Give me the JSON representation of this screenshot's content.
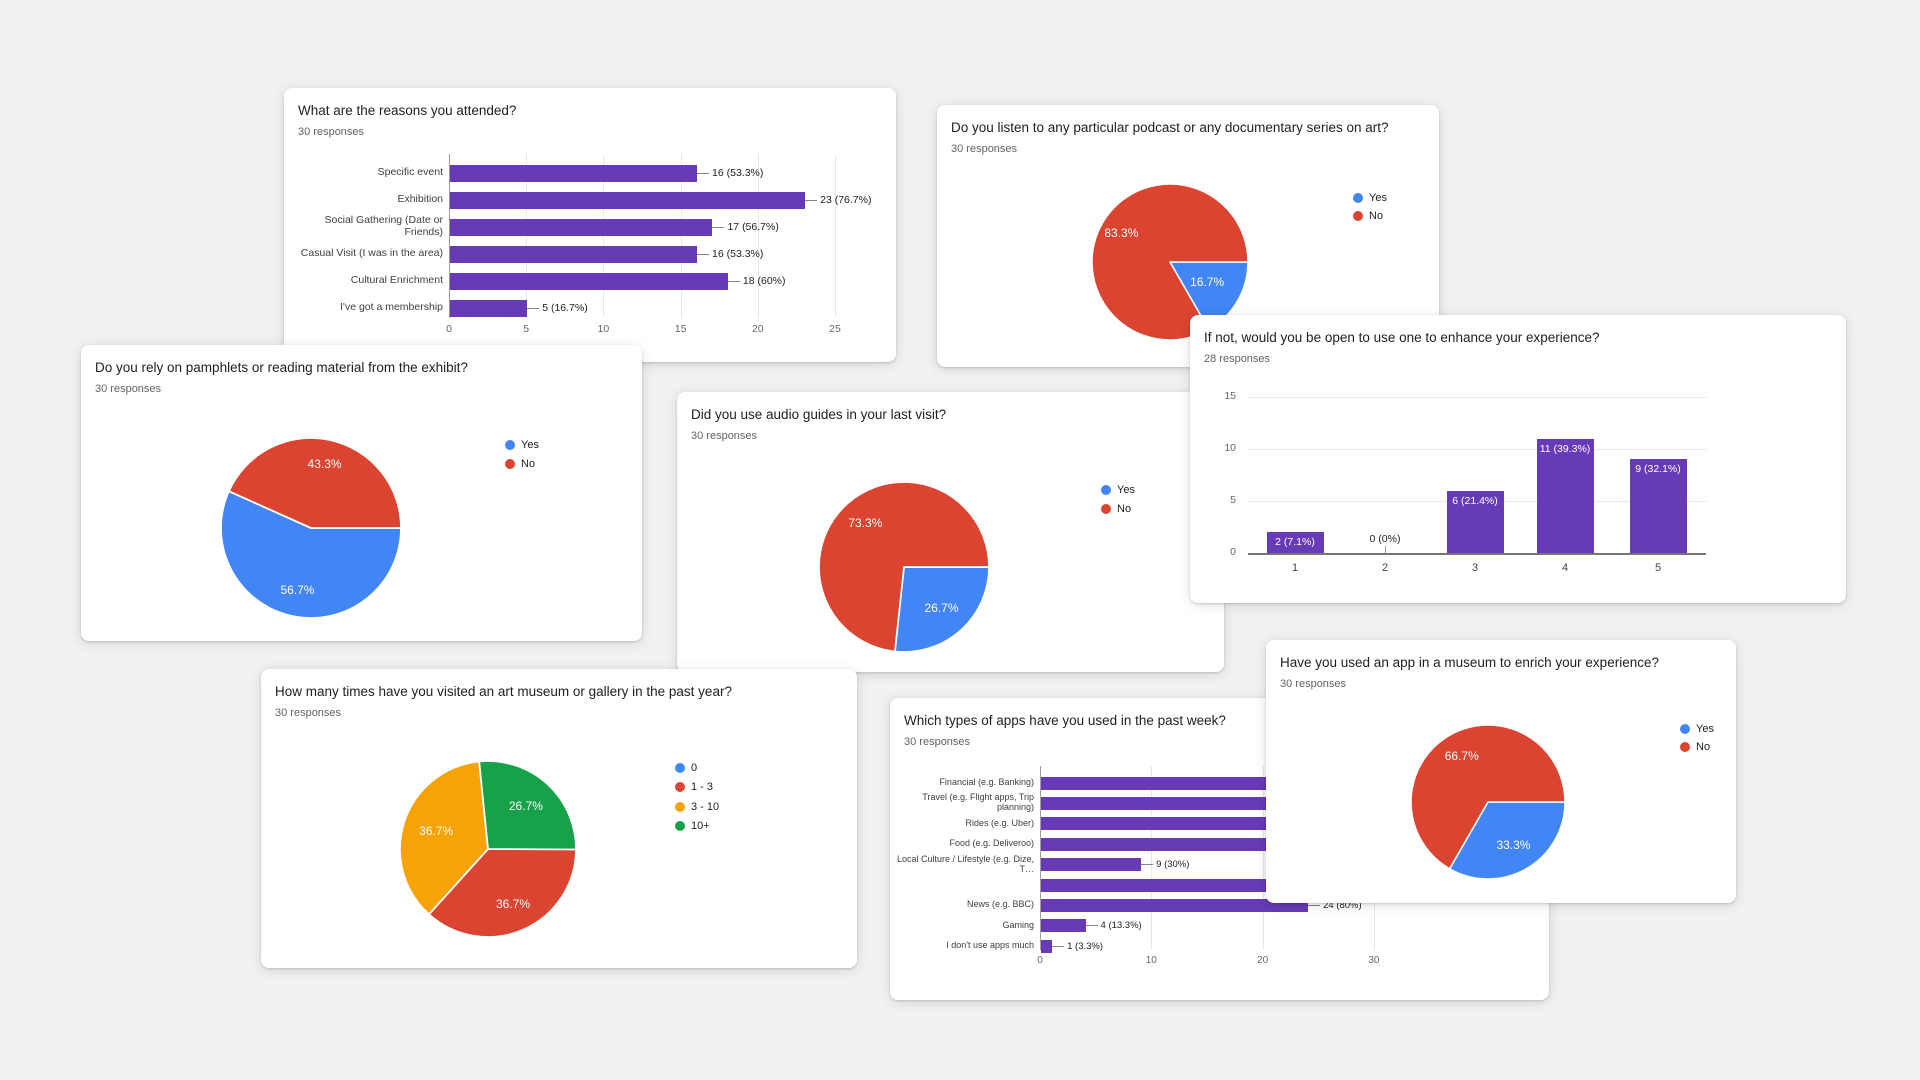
{
  "page": {
    "background": "#f1f1f1"
  },
  "colors": {
    "bar_purple": "#673ab7",
    "blue": "#4285f4",
    "red": "#db4430",
    "orange": "#f7a308",
    "green": "#17a24a",
    "gridline": "#e8e8e8",
    "axis_line": "#9e9e9e",
    "text_dark": "#212121",
    "text_gray": "#5f6368"
  },
  "chart_data": [
    {
      "id": "reasons-attended",
      "type": "bar-horizontal",
      "title": "What are the reasons you attended?",
      "responses_label": "30 responses",
      "x_ticks": [
        0,
        5,
        10,
        15,
        20,
        25
      ],
      "x_range": [
        0,
        25
      ],
      "grid": true,
      "bars": [
        {
          "label": "Specific event",
          "value": 16,
          "value_label": "16 (53.3%)"
        },
        {
          "label": "Exhibition",
          "value": 23,
          "value_label": "23 (76.7%)"
        },
        {
          "label": "Social Gathering (Date or Friends)",
          "value": 17,
          "value_label": "17 (56.7%)"
        },
        {
          "label": "Casual Visit (I was in the area)",
          "value": 16,
          "value_label": "16 (53.3%)"
        },
        {
          "label": "Cultural Enrichment",
          "value": 18,
          "value_label": "18 (60%)"
        },
        {
          "label": "I've got a membership",
          "value": 5,
          "value_label": "5 (16.7%)"
        }
      ]
    },
    {
      "id": "podcast-on-art",
      "type": "pie",
      "title": "Do you listen to any particular podcast or any documentary series on art?",
      "responses_label": "30 responses",
      "legend_position": "right",
      "slices": [
        {
          "label": "Yes",
          "pct": 16.7,
          "pct_label": "16.7%",
          "color": "#4285f4",
          "label_dist": 0.55
        },
        {
          "label": "No",
          "pct": 83.3,
          "pct_label": "83.3%",
          "color": "#db4430",
          "label_dist": 0.72
        }
      ]
    },
    {
      "id": "pamphlets",
      "type": "pie",
      "title": "Do you rely on pamphlets or reading material from the exhibit?",
      "responses_label": "30 responses",
      "legend_position": "right",
      "slices": [
        {
          "label": "Yes",
          "pct": 56.7,
          "pct_label": "56.7%",
          "color": "#4285f4",
          "label_dist": 0.72
        },
        {
          "label": "No",
          "pct": 43.3,
          "pct_label": "43.3%",
          "color": "#db4430",
          "label_dist": 0.72
        }
      ]
    },
    {
      "id": "audio-guides",
      "type": "pie",
      "title": "Did you use audio guides in your last visit?",
      "responses_label": "30 responses",
      "legend_position": "right",
      "slices": [
        {
          "label": "Yes",
          "pct": 26.7,
          "pct_label": "26.7%",
          "color": "#4285f4",
          "label_dist": 0.66
        },
        {
          "label": "No",
          "pct": 73.3,
          "pct_label": "73.3%",
          "color": "#db4430",
          "label_dist": 0.68
        }
      ]
    },
    {
      "id": "open-to-audio-guide",
      "type": "bar-vertical",
      "title": "If not, would you be open to use one to enhance your experience?",
      "responses_label": "28 responses",
      "y_ticks": [
        0,
        5,
        10,
        15
      ],
      "y_range": [
        0,
        15
      ],
      "grid": true,
      "bars": [
        {
          "label": "1",
          "value": 2,
          "value_label": "2 (7.1%)"
        },
        {
          "label": "2",
          "value": 0,
          "value_label": "0 (0%)"
        },
        {
          "label": "3",
          "value": 6,
          "value_label": "6 (21.4%)"
        },
        {
          "label": "4",
          "value": 11,
          "value_label": "11 (39.3%)"
        },
        {
          "label": "5",
          "value": 9,
          "value_label": "9 (32.1%)"
        }
      ]
    },
    {
      "id": "visit-frequency",
      "type": "pie",
      "title": "How many times have you visited an art museum or gallery in the past year?",
      "responses_label": "30 responses",
      "legend_position": "right",
      "slices": [
        {
          "label": "0",
          "pct": 0,
          "pct_label": "",
          "color": "#4285f4"
        },
        {
          "label": "1 - 3",
          "pct": 36.7,
          "pct_label": "36.7%",
          "color": "#db4430",
          "label_dist": 0.7
        },
        {
          "label": "3 - 10",
          "pct": 36.7,
          "pct_label": "36.7%",
          "color": "#f7a308",
          "label_dist": 0.62
        },
        {
          "label": "10+",
          "pct": 26.7,
          "pct_label": "26.7%",
          "color": "#17a24a",
          "label_dist": 0.64
        }
      ]
    },
    {
      "id": "app-types-past-week",
      "type": "bar-horizontal",
      "title": "Which types of apps have you used in the past week?",
      "responses_label": "30 responses",
      "x_ticks": [
        0,
        10,
        20,
        30
      ],
      "x_range": [
        0,
        30
      ],
      "grid": true,
      "note": "Bars 1-4 and 6 extend under the overlapping card; their value labels are not visible in the screenshot.",
      "bars": [
        {
          "label": "Financial (e.g. Banking)",
          "value": null,
          "visible_units": 21,
          "value_label": ""
        },
        {
          "label": "Travel (e.g. Flight apps, Trip planning)",
          "value": null,
          "visible_units": 21,
          "value_label": ""
        },
        {
          "label": "Rides (e.g. Uber)",
          "value": null,
          "visible_units": 21,
          "value_label": ""
        },
        {
          "label": "Food (e.g. Deliveroo)",
          "value": null,
          "visible_units": 21,
          "value_label": ""
        },
        {
          "label": "Local Culture / Lifestyle (e.g. Dize, T…",
          "value": 9,
          "value_label": "9 (30%)"
        },
        {
          "label": "",
          "value": null,
          "visible_units": 21,
          "value_label": ""
        },
        {
          "label": "News (e.g. BBC)",
          "value": 24,
          "value_label": "24 (80%)"
        },
        {
          "label": "Gaming",
          "value": 4,
          "value_label": "4 (13.3%)"
        },
        {
          "label": "I don't use apps much",
          "value": 1,
          "value_label": "1 (3.3%)"
        }
      ]
    },
    {
      "id": "museum-app",
      "type": "pie",
      "title": "Have you used an app in a museum to enrich your experience?",
      "responses_label": "30 responses",
      "legend_position": "right",
      "slices": [
        {
          "label": "Yes",
          "pct": 33.3,
          "pct_label": "33.3%",
          "color": "#4285f4",
          "label_dist": 0.66
        },
        {
          "label": "No",
          "pct": 66.7,
          "pct_label": "66.7%",
          "color": "#db4430",
          "label_dist": 0.68
        }
      ]
    }
  ]
}
